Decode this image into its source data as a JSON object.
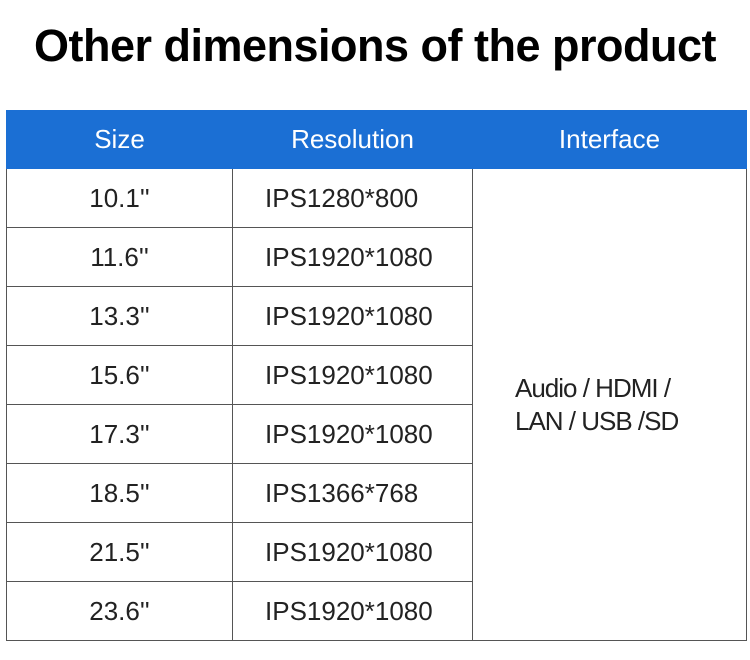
{
  "header": {
    "title": "Other dimensions of the product"
  },
  "table": {
    "columns": [
      "Size",
      "Resolution",
      "Interface"
    ],
    "rows": [
      [
        "10.1''",
        "IPS1280*800"
      ],
      [
        "11.6''",
        "IPS1920*1080"
      ],
      [
        "13.3''",
        "IPS1920*1080"
      ],
      [
        "15.6''",
        "IPS1920*1080"
      ],
      [
        "17.3''",
        "IPS1920*1080"
      ],
      [
        "18.5''",
        "IPS1366*768"
      ],
      [
        "21.5''",
        "IPS1920*1080"
      ],
      [
        "23.6''",
        "IPS1920*1080"
      ]
    ],
    "interface": [
      "Audio / HDMI /",
      "LAN / USB /SD"
    ]
  }
}
